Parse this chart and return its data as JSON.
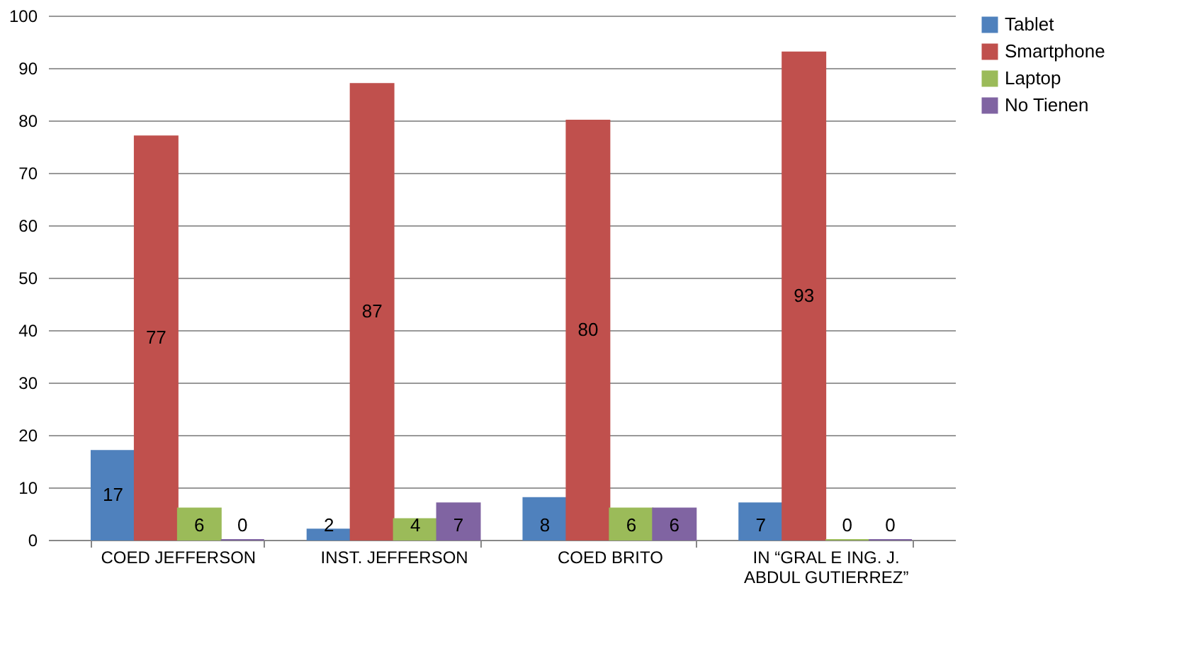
{
  "chart_data": {
    "type": "bar",
    "categories": [
      "COED JEFFERSON",
      "INST. JEFFERSON",
      "COED   BRITO",
      "IN “GRAL E ING. J. ABDUL GUTIERREZ”"
    ],
    "series": [
      {
        "name": "Tablet",
        "color": "#4f81bd",
        "values": [
          17,
          2,
          8,
          7
        ]
      },
      {
        "name": "Smartphone",
        "color": "#c0504d",
        "values": [
          77,
          87,
          80,
          93
        ]
      },
      {
        "name": "Laptop",
        "color": "#9bbb59",
        "values": [
          6,
          4,
          6,
          0
        ]
      },
      {
        "name": "No Tienen",
        "color": "#8064a2",
        "values": [
          0,
          7,
          6,
          0
        ]
      }
    ],
    "ylim": [
      0,
      100
    ],
    "yticks": [
      0,
      10,
      20,
      30,
      40,
      50,
      60,
      70,
      80,
      90,
      100
    ],
    "grid": "y",
    "legend": "right",
    "data_labels": true
  }
}
